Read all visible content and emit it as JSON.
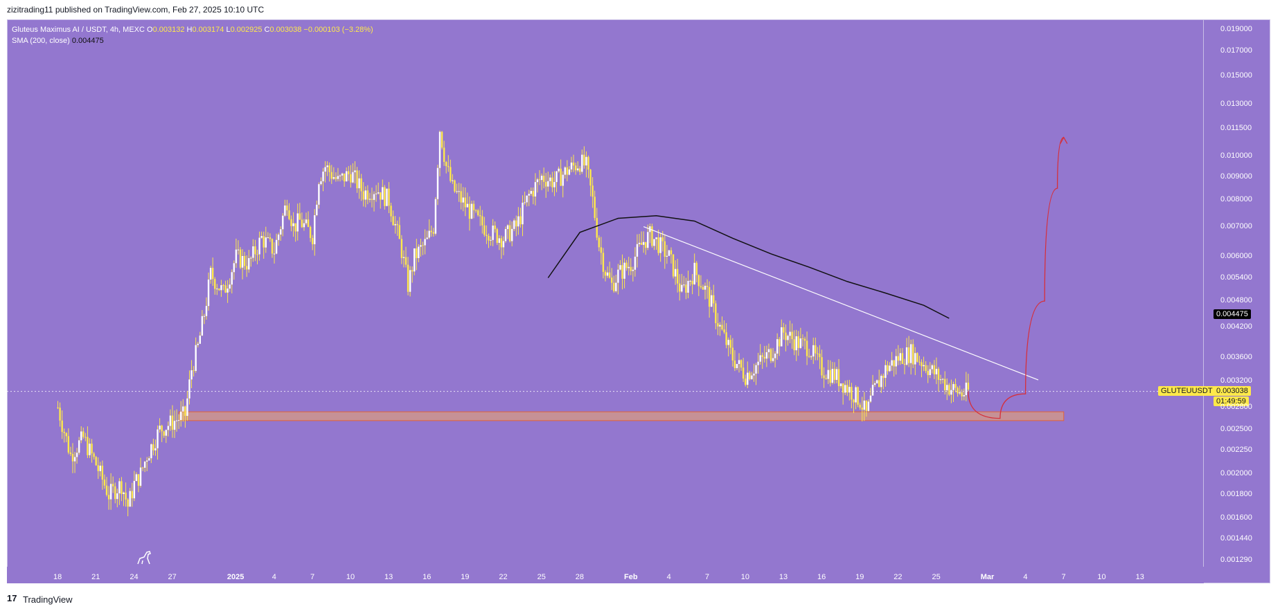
{
  "header": {
    "published": "zizitrading11 published on TradingView.com, Feb 27, 2025 10:10 UTC"
  },
  "legend": {
    "symbol": "Gluteus Maximus AI / USDT, 4h, MEXC",
    "open_label": "O",
    "open": "0.003132",
    "high_label": "H",
    "high": "0.003174",
    "low_label": "L",
    "low": "0.002925",
    "close_label": "C",
    "close": "0.003038",
    "change": "−0.000103 (−3.28%)",
    "sma_label": "SMA (200, close)",
    "sma_value": "0.004475"
  },
  "badges": {
    "sma": "0.004475",
    "symbol": "GLUTEUUSDT",
    "price": "0.003038",
    "countdown": "01:49:59"
  },
  "footer": {
    "logo": "17",
    "brand": "TradingView"
  },
  "colors": {
    "background": "#9377cf",
    "candle": "#ffe94a",
    "sma": "#111111",
    "trendline": "#ffffff",
    "zone_fill": "#f0a868",
    "zone_border": "#e0603a",
    "projection": "#d62f3a"
  },
  "chart_data": {
    "type": "candlestick",
    "scale": "log",
    "interval": "4h",
    "y_ticks": [
      "0.019000",
      "0.017000",
      "0.015000",
      "0.013000",
      "0.011500",
      "0.010000",
      "0.009000",
      "0.008000",
      "0.007000",
      "0.006000",
      "0.005400",
      "0.004800",
      "0.004200",
      "0.003600",
      "0.003200",
      "0.002800",
      "0.002500",
      "0.002250",
      "0.002000",
      "0.001800",
      "0.001600",
      "0.001440",
      "0.001290"
    ],
    "y_tick_values": [
      0.019,
      0.017,
      0.015,
      0.013,
      0.0115,
      0.01,
      0.009,
      0.008,
      0.007,
      0.006,
      0.0054,
      0.0048,
      0.0042,
      0.0036,
      0.0032,
      0.0028,
      0.0025,
      0.00225,
      0.002,
      0.0018,
      0.0016,
      0.00144,
      0.00129
    ],
    "x_ticks": [
      "18",
      "21",
      "24",
      "27",
      "2025",
      "4",
      "7",
      "10",
      "13",
      "16",
      "19",
      "22",
      "25",
      "28",
      "Feb",
      "4",
      "7",
      "10",
      "13",
      "16",
      "19",
      "22",
      "25",
      "Mar",
      "4",
      "7",
      "10",
      "13"
    ],
    "x_tick_days": [
      0,
      3,
      6,
      9,
      14,
      17,
      20,
      23,
      26,
      29,
      32,
      35,
      38,
      41,
      45,
      48,
      51,
      54,
      57,
      60,
      63,
      66,
      69,
      73,
      76,
      79,
      82,
      85
    ],
    "x_unit": "days since Dec 18, 2024",
    "price_path": [
      [
        0.0,
        0.0028
      ],
      [
        1.0,
        0.0022
      ],
      [
        2.0,
        0.0024
      ],
      [
        3.0,
        0.0021
      ],
      [
        4.0,
        0.0018
      ],
      [
        5.0,
        0.0019
      ],
      [
        5.5,
        0.0017
      ],
      [
        6.0,
        0.0019
      ],
      [
        6.5,
        0.002
      ],
      [
        7.0,
        0.0022
      ],
      [
        8.0,
        0.0025
      ],
      [
        9.0,
        0.0026
      ],
      [
        10.0,
        0.0027
      ],
      [
        10.5,
        0.0034
      ],
      [
        11.0,
        0.0038
      ],
      [
        11.5,
        0.0045
      ],
      [
        12.0,
        0.0055
      ],
      [
        13.0,
        0.005
      ],
      [
        14.0,
        0.006
      ],
      [
        15.0,
        0.0058
      ],
      [
        16.0,
        0.0066
      ],
      [
        17.0,
        0.0062
      ],
      [
        18.0,
        0.008
      ],
      [
        18.5,
        0.007
      ],
      [
        19.0,
        0.0072
      ],
      [
        20.0,
        0.0067
      ],
      [
        20.5,
        0.009
      ],
      [
        21.0,
        0.0095
      ],
      [
        22.0,
        0.0088
      ],
      [
        23.0,
        0.0092
      ],
      [
        24.0,
        0.0083
      ],
      [
        25.0,
        0.0085
      ],
      [
        26.0,
        0.008
      ],
      [
        27.0,
        0.0062
      ],
      [
        27.5,
        0.0052
      ],
      [
        28.0,
        0.006
      ],
      [
        29.0,
        0.0065
      ],
      [
        29.5,
        0.007
      ],
      [
        30.0,
        0.0115
      ],
      [
        30.5,
        0.0095
      ],
      [
        31.0,
        0.0085
      ],
      [
        32.0,
        0.0078
      ],
      [
        33.0,
        0.0072
      ],
      [
        34.0,
        0.0068
      ],
      [
        35.0,
        0.0066
      ],
      [
        36.0,
        0.007
      ],
      [
        37.0,
        0.0082
      ],
      [
        38.0,
        0.009
      ],
      [
        39.0,
        0.0088
      ],
      [
        40.0,
        0.0093
      ],
      [
        41.0,
        0.0097
      ],
      [
        41.5,
        0.0095
      ],
      [
        42.0,
        0.008
      ],
      [
        42.5,
        0.0064
      ],
      [
        43.0,
        0.0056
      ],
      [
        43.5,
        0.0052
      ],
      [
        44.0,
        0.0055
      ],
      [
        45.0,
        0.0058
      ],
      [
        46.0,
        0.0065
      ],
      [
        46.5,
        0.0067
      ],
      [
        47.0,
        0.0065
      ],
      [
        48.0,
        0.006
      ],
      [
        48.5,
        0.0055
      ],
      [
        49.0,
        0.005
      ],
      [
        50.0,
        0.0056
      ],
      [
        51.0,
        0.005
      ],
      [
        52.0,
        0.0042
      ],
      [
        53.0,
        0.0036
      ],
      [
        54.0,
        0.0033
      ],
      [
        55.0,
        0.0035
      ],
      [
        56.0,
        0.0037
      ],
      [
        57.0,
        0.0041
      ],
      [
        58.0,
        0.0039
      ],
      [
        59.0,
        0.0038
      ],
      [
        60.0,
        0.0034
      ],
      [
        61.0,
        0.0033
      ],
      [
        62.0,
        0.0031
      ],
      [
        63.0,
        0.0029
      ],
      [
        63.5,
        0.0027
      ],
      [
        64.0,
        0.003
      ],
      [
        65.0,
        0.0034
      ],
      [
        66.0,
        0.0036
      ],
      [
        67.0,
        0.0037
      ],
      [
        68.0,
        0.0035
      ],
      [
        69.0,
        0.0033
      ],
      [
        70.0,
        0.0031
      ],
      [
        71.0,
        0.003
      ],
      [
        71.5,
        0.00304
      ]
    ],
    "sma_200": [
      [
        38.5,
        0.0054
      ],
      [
        41.0,
        0.0068
      ],
      [
        44.0,
        0.0073
      ],
      [
        47.0,
        0.0074
      ],
      [
        50.0,
        0.0072
      ],
      [
        53.0,
        0.0066
      ],
      [
        56.0,
        0.0061
      ],
      [
        59.0,
        0.0057
      ],
      [
        62.0,
        0.0053
      ],
      [
        65.0,
        0.005
      ],
      [
        68.0,
        0.0047
      ],
      [
        70.0,
        0.0044
      ]
    ],
    "trendline": [
      [
        46.0,
        0.007
      ],
      [
        77.0,
        0.00322
      ]
    ],
    "support_zone": {
      "from": 0.00262,
      "to": 0.00274,
      "x_start": 9.5,
      "x_end": 79.0
    },
    "projection": [
      [
        71.5,
        0.00304
      ],
      [
        74.0,
        0.00265
      ],
      [
        76.0,
        0.003
      ],
      [
        77.5,
        0.0048
      ],
      [
        78.5,
        0.0085
      ],
      [
        79.0,
        0.011
      ]
    ],
    "last_price": 0.003038,
    "sma_last": 0.004475,
    "ylim": [
      0.00125,
      0.02
    ],
    "xlim": [
      -4.0,
      90.0
    ]
  }
}
